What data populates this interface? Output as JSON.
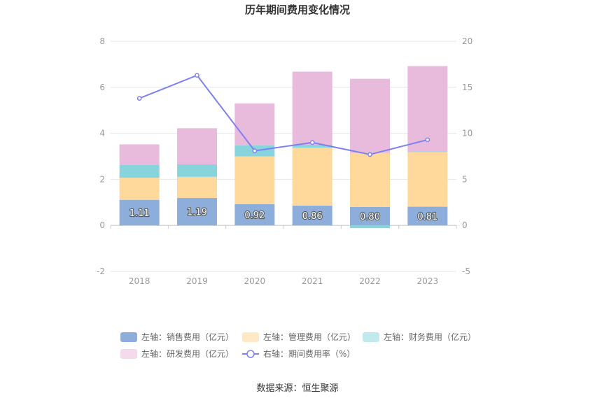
{
  "chart_data": {
    "type": "bar",
    "title": "历年期间费用变化情况",
    "source": "数据来源：恒生聚源",
    "categories": [
      "2018",
      "2019",
      "2020",
      "2021",
      "2022",
      "2023"
    ],
    "left_axis": {
      "min": -2,
      "max": 8,
      "ticks": [
        "-2",
        "0",
        "2",
        "4",
        "6",
        "8"
      ]
    },
    "right_axis": {
      "min": -5,
      "max": 20,
      "ticks": [
        "-5",
        "0",
        "5",
        "10",
        "15",
        "20"
      ]
    },
    "series": [
      {
        "name": "左轴：销售费用（亿元）",
        "axis": "left",
        "type": "bar",
        "color": "#8DAEDB",
        "values": [
          1.11,
          1.19,
          0.92,
          0.86,
          0.8,
          0.81
        ],
        "labels": [
          "1.11",
          "1.19",
          "0.92",
          "0.86",
          "0.80",
          "0.81"
        ]
      },
      {
        "name": "左轴：管理费用（亿元）",
        "axis": "left",
        "type": "bar",
        "color": "#FFD99C",
        "legend_color": "#FFE8C4",
        "values": [
          0.96,
          0.92,
          2.08,
          2.52,
          2.35,
          2.38
        ]
      },
      {
        "name": "左轴：财务费用（亿元）",
        "axis": "left",
        "type": "bar",
        "color": "#87D4DC",
        "legend_color": "#C2EAEE",
        "values": [
          0.55,
          0.54,
          0.48,
          0.12,
          -0.12,
          0.02
        ]
      },
      {
        "name": "左轴：研发费用（亿元）",
        "axis": "left",
        "type": "bar",
        "color": "#E8BADB",
        "legend_color": "#F4DAEB",
        "values": [
          0.9,
          1.57,
          1.82,
          3.18,
          3.22,
          3.71
        ]
      },
      {
        "name": "右轴：期间费用率（%）",
        "axis": "right",
        "type": "line",
        "color": "#7D80F0",
        "values": [
          13.8,
          16.3,
          8.1,
          9.0,
          7.7,
          9.3
        ]
      }
    ]
  }
}
